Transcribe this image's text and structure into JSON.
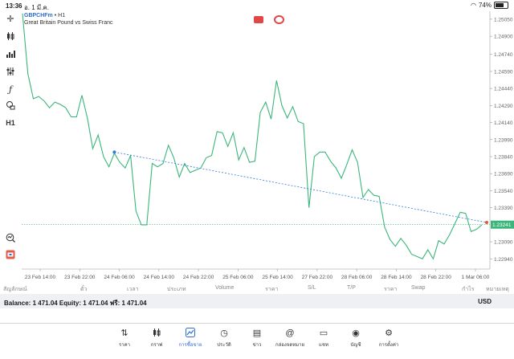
{
  "status": {
    "time": "13:36",
    "date": "อ. 1 มี.ค.",
    "battery": "74%"
  },
  "chart": {
    "symbol": "GBPCHFm",
    "timeframe": "H1",
    "description": "Great Britain Pound vs Swiss Franc",
    "current_price": "1.23241",
    "price_labels": [
      "1.25050",
      "1.24900",
      "1.24740",
      "1.24590",
      "1.24440",
      "1.24290",
      "1.24140",
      "1.23990",
      "1.23840",
      "1.23690",
      "1.23540",
      "1.23390",
      "1.23241",
      "1.23090",
      "1.22940"
    ],
    "time_labels": [
      "23 Feb 14:00",
      "23 Feb 22:00",
      "24 Feb 06:00",
      "24 Feb 14:00",
      "24 Feb 22:00",
      "25 Feb 06:00",
      "25 Feb 14:00",
      "27 Feb 22:00",
      "28 Feb 06:00",
      "28 Feb 14:00",
      "28 Feb 22:00",
      "1 Mar 06:00"
    ],
    "line_color": "#3bb67a",
    "trendline_color": "#2f7bd8"
  },
  "chart_data": {
    "type": "line",
    "title": "GBPCHFm, H1",
    "ylim": [
      1.2285,
      1.2512
    ],
    "series": [
      {
        "name": "GBPCHFm",
        "values": [
          1.251,
          1.2457,
          1.2435,
          1.2437,
          1.2433,
          1.2427,
          1.2432,
          1.243,
          1.2427,
          1.2419,
          1.2419,
          1.2438,
          1.2418,
          1.2391,
          1.2403,
          1.2384,
          1.2375,
          1.2387,
          1.2379,
          1.2374,
          1.2385,
          1.2336,
          1.2324,
          1.2324,
          1.2378,
          1.2375,
          1.2378,
          1.2394,
          1.2383,
          1.2366,
          1.2378,
          1.237,
          1.2372,
          1.2374,
          1.2383,
          1.2385,
          1.2406,
          1.2405,
          1.2393,
          1.2405,
          1.2381,
          1.2392,
          1.2379,
          1.238,
          1.2423,
          1.2432,
          1.2417,
          1.2451,
          1.2429,
          1.2418,
          1.2428,
          1.2415,
          1.2413,
          1.2339,
          1.2384,
          1.2388,
          1.2388,
          1.238,
          1.2374,
          1.2365,
          1.2377,
          1.239,
          1.2379,
          1.2348,
          1.2355,
          1.235,
          1.2349,
          1.2322,
          1.2311,
          1.2305,
          1.2312,
          1.2306,
          1.2298,
          1.2296,
          1.2294,
          1.2302,
          1.2294,
          1.231,
          1.2307,
          1.2315,
          1.2325,
          1.2335,
          1.2334,
          1.2318,
          1.232,
          1.2324
        ]
      }
    ],
    "trendline": {
      "start": 1.2388,
      "end": 1.2326
    },
    "current_price_line": 1.23241
  },
  "toolbar": {
    "timeframe_label": "H1"
  },
  "columns": [
    "สัญลักษณ์",
    "ตั๋ว",
    "เวลา",
    "ประเภท",
    "Volume",
    "ราคา",
    "S/L",
    "T/P",
    "ราคา",
    "Swap",
    "กำไร",
    "หมายเหตุ"
  ],
  "account": {
    "summary": "Balance: 1 471.04 Equity: 1 471.04 ฟรี: 1 471.04",
    "currency": "USD"
  },
  "nav": [
    {
      "label": "ราคา",
      "icon": "quotes-icon"
    },
    {
      "label": "กราฟ",
      "icon": "chart-icon"
    },
    {
      "label": "การซื้อขาย",
      "icon": "trade-icon",
      "active": true
    },
    {
      "label": "ประวัติ",
      "icon": "history-icon"
    },
    {
      "label": "ข่าว",
      "icon": "news-icon"
    },
    {
      "label": "กล่องจดหมาย",
      "icon": "mailbox-icon"
    },
    {
      "label": "แชท",
      "icon": "chat-icon"
    },
    {
      "label": "บัญชี",
      "icon": "account-icon"
    },
    {
      "label": "การตั้งค่า",
      "icon": "settings-icon"
    }
  ]
}
